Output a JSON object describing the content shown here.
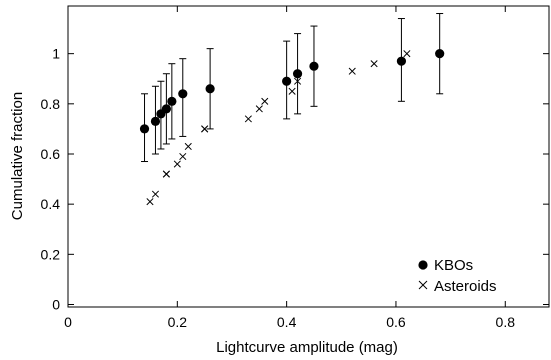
{
  "chart_data": {
    "type": "scatter",
    "xlabel": "Lightcurve amplitude (mag)",
    "ylabel": "Cumulative fraction",
    "xlim": [
      0,
      0.88
    ],
    "ylim": [
      -0.01,
      1.19
    ],
    "x_ticks": [
      0,
      0.2,
      0.4,
      0.6,
      0.8
    ],
    "x_tick_labels": [
      "0",
      "0.2",
      "0.4",
      "0.6",
      "0.8"
    ],
    "y_ticks": [
      0,
      0.2,
      0.4,
      0.6,
      0.8,
      1
    ],
    "y_tick_labels": [
      "0",
      "0.2",
      "0.4",
      "0.6",
      "0.8",
      "1"
    ],
    "grid": false,
    "legend_position": "bottom-right",
    "series": [
      {
        "name": "KBOs",
        "marker": "filled-circle",
        "color": "#000000",
        "points": [
          {
            "x": 0.14,
            "y": 0.7,
            "err_low": 0.57,
            "err_high": 0.84
          },
          {
            "x": 0.16,
            "y": 0.73,
            "err_low": 0.6,
            "err_high": 0.87
          },
          {
            "x": 0.17,
            "y": 0.76,
            "err_low": 0.62,
            "err_high": 0.89
          },
          {
            "x": 0.18,
            "y": 0.78,
            "err_low": 0.64,
            "err_high": 0.92
          },
          {
            "x": 0.19,
            "y": 0.81,
            "err_low": 0.66,
            "err_high": 0.96
          },
          {
            "x": 0.21,
            "y": 0.84,
            "err_low": 0.67,
            "err_high": 0.98
          },
          {
            "x": 0.26,
            "y": 0.86,
            "err_low": 0.7,
            "err_high": 1.02
          },
          {
            "x": 0.4,
            "y": 0.89,
            "err_low": 0.74,
            "err_high": 1.05
          },
          {
            "x": 0.42,
            "y": 0.92,
            "err_low": 0.76,
            "err_high": 1.08
          },
          {
            "x": 0.45,
            "y": 0.95,
            "err_low": 0.79,
            "err_high": 1.11
          },
          {
            "x": 0.61,
            "y": 0.97,
            "err_low": 0.81,
            "err_high": 1.14
          },
          {
            "x": 0.68,
            "y": 1.0,
            "err_low": 0.84,
            "err_high": 1.16
          }
        ]
      },
      {
        "name": "Asteroids",
        "marker": "x-cross",
        "color": "#000000",
        "points": [
          {
            "x": 0.15,
            "y": 0.41
          },
          {
            "x": 0.16,
            "y": 0.44
          },
          {
            "x": 0.18,
            "y": 0.52
          },
          {
            "x": 0.18,
            "y": 0.52
          },
          {
            "x": 0.2,
            "y": 0.56
          },
          {
            "x": 0.21,
            "y": 0.59
          },
          {
            "x": 0.22,
            "y": 0.63
          },
          {
            "x": 0.25,
            "y": 0.7
          },
          {
            "x": 0.25,
            "y": 0.7
          },
          {
            "x": 0.33,
            "y": 0.74
          },
          {
            "x": 0.35,
            "y": 0.78
          },
          {
            "x": 0.36,
            "y": 0.81
          },
          {
            "x": 0.41,
            "y": 0.85
          },
          {
            "x": 0.42,
            "y": 0.89
          },
          {
            "x": 0.52,
            "y": 0.93
          },
          {
            "x": 0.56,
            "y": 0.96
          },
          {
            "x": 0.62,
            "y": 1.0
          }
        ]
      }
    ]
  }
}
